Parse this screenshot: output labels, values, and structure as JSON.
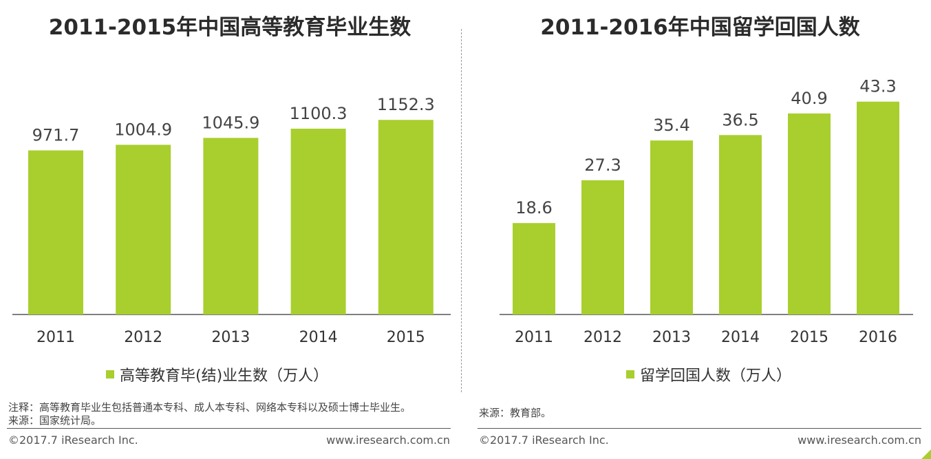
{
  "bar_color": "#a8cf2e",
  "chart_data": [
    {
      "type": "bar",
      "title": "2011-2015年中国高等教育毕业生数",
      "categories": [
        "2011",
        "2012",
        "2013",
        "2014",
        "2015"
      ],
      "values": [
        971.7,
        1004.9,
        1045.9,
        1100.3,
        1152.3
      ],
      "value_labels": [
        "971.7",
        "1004.9",
        "1045.9",
        "1100.3",
        "1152.3"
      ],
      "legend": "高等教育毕(结)业生数（万人）",
      "xlabel": "",
      "ylabel": "",
      "ylim": [
        0,
        1300
      ],
      "grid": false
    },
    {
      "type": "bar",
      "title": "2011-2016年中国留学回国人数",
      "categories": [
        "2011",
        "2012",
        "2013",
        "2014",
        "2015",
        "2016"
      ],
      "values": [
        18.6,
        27.3,
        35.4,
        36.5,
        40.9,
        43.3
      ],
      "value_labels": [
        "18.6",
        "27.3",
        "35.4",
        "36.5",
        "40.9",
        "43.3"
      ],
      "legend": "留学回国人数（万人）",
      "xlabel": "",
      "ylabel": "",
      "ylim": [
        0,
        45.5
      ],
      "grid": false
    }
  ],
  "left": {
    "note": "注释：高等教育毕业生包括普通本专科、成人本专科、网络本专科以及硕士博士毕业生。",
    "source": "来源：国家统计局。",
    "copyright": "©2017.7 iResearch Inc.",
    "website": "www.iresearch.com.cn"
  },
  "right": {
    "source": "来源：教育部。",
    "copyright": "©2017.7 iResearch Inc.",
    "website": "www.iresearch.com.cn"
  }
}
